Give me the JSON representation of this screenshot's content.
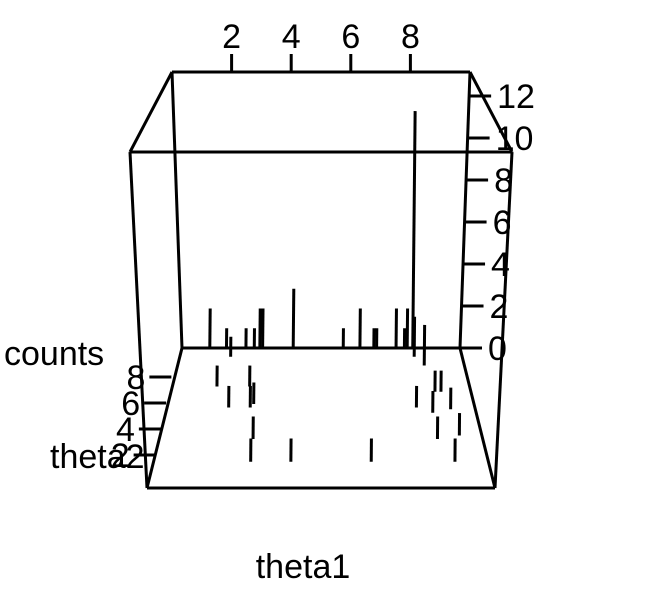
{
  "chart_data": {
    "type": "3d-histogram",
    "title": "",
    "xlabel": "theta1",
    "ylabel": "theta2",
    "zlabel": "counts",
    "x_ticks": [
      "2",
      "4",
      "6",
      "8"
    ],
    "y_ticks": [
      "2",
      "4",
      "6",
      "8"
    ],
    "z_ticks": [
      "0",
      "2",
      "4",
      "6",
      "8",
      "10",
      "12"
    ],
    "xlim": [
      0,
      10
    ],
    "ylim": [
      1,
      9
    ],
    "zlim": [
      0,
      13
    ],
    "points": [
      {
        "x": 1.0,
        "y": 9,
        "z": 2
      },
      {
        "x": 1.6,
        "y": 9,
        "z": 1
      },
      {
        "x": 1.8,
        "y": 8.5,
        "z": 1
      },
      {
        "x": 2.3,
        "y": 9,
        "z": 1
      },
      {
        "x": 2.6,
        "y": 9,
        "z": 1
      },
      {
        "x": 2.8,
        "y": 9,
        "z": 2
      },
      {
        "x": 2.9,
        "y": 9,
        "z": 2
      },
      {
        "x": 4.0,
        "y": 9,
        "z": 3
      },
      {
        "x": 5.8,
        "y": 9,
        "z": 1
      },
      {
        "x": 6.4,
        "y": 9,
        "z": 2
      },
      {
        "x": 6.9,
        "y": 9,
        "z": 1
      },
      {
        "x": 7.0,
        "y": 9,
        "z": 1
      },
      {
        "x": 7.7,
        "y": 9,
        "z": 2
      },
      {
        "x": 8.0,
        "y": 9,
        "z": 1
      },
      {
        "x": 8.1,
        "y": 9,
        "z": 2
      },
      {
        "x": 8.3,
        "y": 8.5,
        "z": 2
      },
      {
        "x": 8.3,
        "y": 9,
        "z": 12
      },
      {
        "x": 8.6,
        "y": 8,
        "z": 2
      },
      {
        "x": 1.5,
        "y": 6.8,
        "z": 1
      },
      {
        "x": 2.6,
        "y": 6.8,
        "z": 1
      },
      {
        "x": 8.8,
        "y": 6.5,
        "z": 1
      },
      {
        "x": 9.0,
        "y": 6.5,
        "z": 1
      },
      {
        "x": 2.0,
        "y": 5.6,
        "z": 1
      },
      {
        "x": 2.7,
        "y": 5.6,
        "z": 1
      },
      {
        "x": 2.8,
        "y": 5.8,
        "z": 1
      },
      {
        "x": 8.1,
        "y": 5.6,
        "z": 1
      },
      {
        "x": 8.6,
        "y": 5.3,
        "z": 1
      },
      {
        "x": 9.2,
        "y": 5.5,
        "z": 1
      },
      {
        "x": 2.9,
        "y": 3.8,
        "z": 1
      },
      {
        "x": 8.6,
        "y": 3.8,
        "z": 1
      },
      {
        "x": 9.3,
        "y": 4.0,
        "z": 1
      },
      {
        "x": 2.9,
        "y": 2.5,
        "z": 1
      },
      {
        "x": 4.1,
        "y": 2.5,
        "z": 1
      },
      {
        "x": 6.5,
        "y": 2.5,
        "z": 1
      },
      {
        "x": 9.0,
        "y": 2.5,
        "z": 1
      }
    ]
  }
}
